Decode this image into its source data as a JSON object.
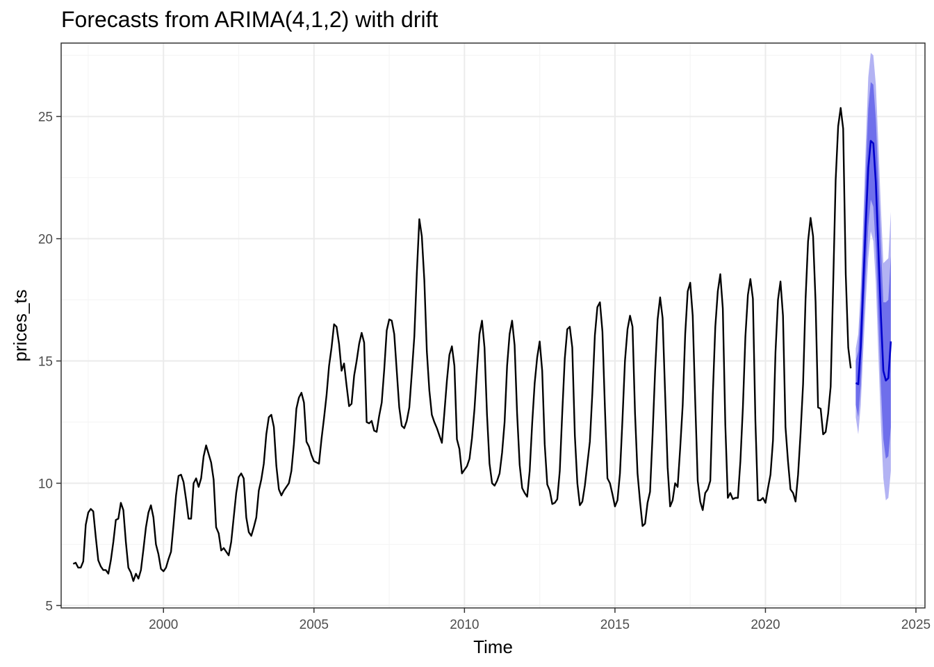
{
  "chart_data": {
    "type": "line",
    "title": "Forecasts from ARIMA(4,1,2) with drift",
    "xlabel": "Time",
    "ylabel": "prices_ts",
    "xlim": [
      1996.6,
      2025.3
    ],
    "ylim": [
      4.9,
      28.0
    ],
    "x_ticks": [
      2000,
      2005,
      2010,
      2015,
      2020,
      2025
    ],
    "y_ticks": [
      5,
      10,
      15,
      20,
      25
    ],
    "grid": true,
    "legend": "none",
    "colors": {
      "history": "#000000",
      "forecast": "#0000CC",
      "band80": "#6F6FEB",
      "band95": "#B3B3F3",
      "grid_major": "#EBEBEB",
      "grid_minor": "#F5F5F5",
      "panel_border": "#333333"
    },
    "series": [
      {
        "role": "history",
        "start": 1997.0,
        "frequency": 12,
        "values": [
          6.7,
          6.75,
          6.55,
          6.55,
          6.8,
          8.3,
          8.8,
          8.95,
          8.85,
          7.8,
          6.85,
          6.6,
          6.45,
          6.45,
          6.3,
          6.85,
          7.6,
          8.5,
          8.55,
          9.2,
          8.9,
          7.6,
          6.55,
          6.35,
          6.0,
          6.3,
          6.1,
          6.45,
          7.3,
          8.2,
          8.8,
          9.1,
          8.6,
          7.5,
          7.1,
          6.5,
          6.4,
          6.55,
          6.9,
          7.2,
          8.3,
          9.5,
          10.3,
          10.35,
          10.05,
          9.35,
          8.55,
          8.55,
          10.0,
          10.2,
          9.85,
          10.2,
          11.1,
          11.55,
          11.2,
          10.85,
          10.15,
          8.2,
          7.95,
          7.25,
          7.35,
          7.2,
          7.05,
          7.6,
          8.6,
          9.6,
          10.25,
          10.4,
          10.2,
          8.6,
          8.0,
          7.85,
          8.2,
          8.6,
          9.7,
          10.15,
          10.8,
          12.0,
          12.7,
          12.8,
          12.3,
          10.7,
          9.75,
          9.5,
          9.7,
          9.85,
          10.0,
          10.5,
          11.6,
          13.05,
          13.5,
          13.7,
          13.3,
          11.7,
          11.5,
          11.15,
          10.9,
          10.85,
          10.8,
          11.8,
          12.65,
          13.6,
          14.8,
          15.55,
          16.5,
          16.4,
          15.7,
          14.6,
          14.9,
          14.0,
          13.15,
          13.25,
          14.4,
          15.0,
          15.7,
          16.15,
          15.75,
          12.5,
          12.45,
          12.55,
          12.15,
          12.1,
          12.75,
          13.3,
          14.65,
          16.25,
          16.7,
          16.65,
          16.1,
          14.6,
          13.1,
          12.35,
          12.25,
          12.55,
          13.1,
          14.5,
          16.0,
          18.6,
          20.8,
          20.1,
          18.3,
          15.4,
          13.8,
          12.8,
          12.5,
          12.25,
          11.95,
          11.65,
          12.9,
          14.2,
          15.25,
          15.6,
          14.8,
          11.8,
          11.4,
          10.4,
          10.55,
          10.7,
          11.0,
          11.85,
          13.05,
          14.65,
          16.1,
          16.65,
          15.55,
          12.8,
          10.8,
          10.0,
          9.9,
          10.1,
          10.4,
          11.25,
          12.5,
          14.8,
          16.1,
          16.65,
          15.65,
          12.85,
          10.75,
          9.8,
          9.6,
          9.45,
          10.5,
          12.45,
          14.1,
          15.15,
          15.8,
          14.6,
          11.6,
          9.95,
          9.7,
          9.15,
          9.2,
          9.35,
          10.5,
          12.9,
          15.1,
          16.3,
          16.4,
          15.55,
          11.95,
          10.0,
          9.1,
          9.25,
          9.9,
          10.8,
          11.7,
          13.7,
          16.05,
          17.2,
          17.4,
          16.2,
          13.05,
          10.2,
          10.0,
          9.55,
          9.05,
          9.3,
          10.4,
          12.6,
          15.0,
          16.3,
          16.85,
          16.4,
          12.85,
          10.4,
          9.25,
          8.25,
          8.35,
          9.2,
          9.65,
          11.95,
          14.6,
          16.7,
          17.6,
          16.75,
          13.65,
          10.65,
          9.05,
          9.3,
          10.0,
          9.85,
          11.4,
          13.2,
          16.1,
          17.85,
          18.2,
          16.85,
          13.35,
          10.1,
          9.25,
          8.9,
          9.6,
          9.75,
          10.1,
          13.6,
          16.4,
          17.85,
          18.55,
          17.15,
          12.4,
          9.4,
          9.6,
          9.35,
          9.4,
          9.4,
          10.9,
          13.1,
          16.0,
          17.7,
          18.35,
          17.55,
          12.55,
          9.3,
          9.3,
          9.4,
          9.2,
          9.8,
          10.35,
          11.75,
          15.35,
          17.5,
          18.25,
          16.85,
          12.3,
          10.9,
          9.75,
          9.6,
          9.25,
          10.35,
          12.05,
          14.05,
          17.55,
          19.9,
          20.85,
          20.1,
          17.4,
          13.1,
          13.05,
          12.0,
          12.1,
          12.85,
          13.95,
          18.1,
          22.4,
          24.6,
          25.35,
          24.5,
          18.55,
          15.55,
          14.7
        ]
      },
      {
        "role": "forecast",
        "start": 2023.0,
        "frequency": 12,
        "values": [
          14.1,
          14.05,
          15.6,
          18.1,
          20.6,
          22.9,
          24.0,
          23.9,
          22.3,
          19.6,
          16.9,
          14.6,
          14.2,
          14.3,
          15.8
        ],
        "lo80": [
          13.2,
          12.7,
          14.0,
          16.3,
          18.5,
          20.5,
          21.6,
          21.3,
          19.6,
          16.8,
          14.0,
          11.8,
          11.0,
          11.1,
          12.3
        ],
        "hi80": [
          15.0,
          15.4,
          17.2,
          19.9,
          22.7,
          25.3,
          26.4,
          26.3,
          24.9,
          22.4,
          19.8,
          17.4,
          17.4,
          17.5,
          19.3
        ],
        "lo95": [
          12.7,
          12.0,
          13.2,
          15.4,
          17.4,
          19.2,
          20.3,
          19.9,
          18.2,
          15.3,
          12.5,
          10.2,
          9.3,
          9.4,
          10.5
        ],
        "hi95": [
          15.5,
          16.1,
          18.0,
          20.8,
          23.8,
          26.6,
          27.6,
          27.5,
          26.3,
          23.9,
          21.3,
          19.0,
          19.1,
          19.2,
          21.1
        ]
      }
    ]
  }
}
